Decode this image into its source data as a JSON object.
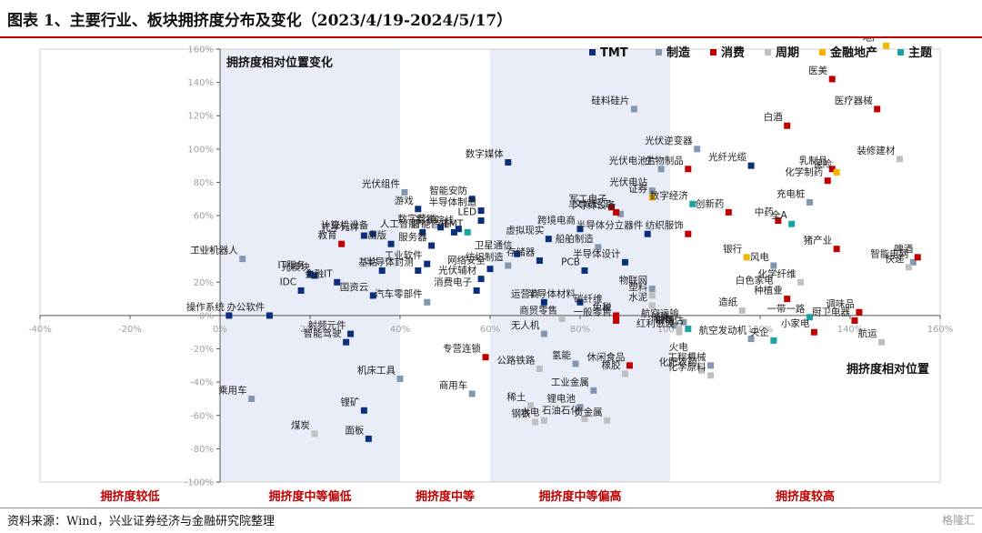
{
  "page": {
    "title": "图表 1、主要行业、板块拥挤度分布及变化（2023/4/19-2024/5/17）",
    "source": "资料来源：Wind，兴业证券经济与金融研究院整理",
    "watermark": "格隆汇"
  },
  "chart_data": {
    "type": "scatter",
    "title": "",
    "xlabel": "拥挤度相对位置",
    "ylabel": "拥挤度相对位置变化",
    "xlim": [
      -40,
      160
    ],
    "ylim": [
      -100,
      160
    ],
    "x_ticks": [
      -40,
      -20,
      0,
      20,
      40,
      60,
      80,
      100,
      120,
      140,
      160
    ],
    "y_ticks": [
      -100,
      -80,
      -60,
      -40,
      -20,
      0,
      20,
      40,
      60,
      80,
      100,
      120,
      140,
      160
    ],
    "x_tick_labels": [
      "-40%",
      "-20%",
      "0%",
      "20%",
      "40%",
      "60%",
      "80%",
      "100%",
      "120%",
      "140%",
      "160%"
    ],
    "y_tick_labels": [
      "-100%",
      "-80%",
      "-60%",
      "-40%",
      "-20%",
      "0%",
      "20%",
      "40%",
      "60%",
      "80%",
      "100%",
      "120%",
      "140%",
      "160%"
    ],
    "zones": [
      {
        "label": "拥挤度较低",
        "from": -40,
        "to": 0,
        "shaded": false
      },
      {
        "label": "拥挤度中等偏低",
        "from": 0,
        "to": 40,
        "shaded": true
      },
      {
        "label": "拥挤度中等",
        "from": 40,
        "to": 60,
        "shaded": false
      },
      {
        "label": "拥挤度中等偏高",
        "from": 60,
        "to": 100,
        "shaded": true
      },
      {
        "label": "拥挤度较高",
        "from": 100,
        "to": 160,
        "shaded": false
      }
    ],
    "legend": {
      "placement": "top-right",
      "entries": [
        {
          "name": "TMT",
          "color": "#0b2f7a"
        },
        {
          "name": "制造",
          "color": "#8497b0"
        },
        {
          "name": "消费",
          "color": "#c00000"
        },
        {
          "name": "周期",
          "color": "#bfbfbf"
        },
        {
          "name": "金融地产",
          "color": "#f4b400"
        },
        {
          "name": "主题",
          "color": "#1aa3a3"
        }
      ]
    },
    "series": [
      {
        "name": "TMT",
        "color": "#0b2f7a",
        "points": [
          {
            "label": "数字媒体",
            "x": 64,
            "y": 92
          },
          {
            "label": "半导体制造",
            "x": 58,
            "y": 63
          },
          {
            "label": "LED",
            "x": 58,
            "y": 57
          },
          {
            "label": "游戏",
            "x": 44,
            "y": 64
          },
          {
            "label": "智能安防",
            "x": 56,
            "y": 70
          },
          {
            "label": "数字营销",
            "x": 49,
            "y": 53
          },
          {
            "label": "影视院线",
            "x": 53,
            "y": 52
          },
          {
            "label": "人工智能",
            "x": 45,
            "y": 50
          },
          {
            "label": "计算机设备",
            "x": 34,
            "y": 49
          },
          {
            "label": "智能音箱",
            "x": 52,
            "y": 50
          },
          {
            "label": "服务器",
            "x": 47,
            "y": 42
          },
          {
            "label": "出版",
            "x": 38,
            "y": 43
          },
          {
            "label": "工业软件",
            "x": 46,
            "y": 31
          },
          {
            "label": "基站",
            "x": 36,
            "y": 27
          },
          {
            "label": "半导体封测",
            "x": 44,
            "y": 27
          },
          {
            "label": "网络安全",
            "x": 60,
            "y": 28
          },
          {
            "label": "光学元件",
            "x": 32,
            "y": 48
          },
          {
            "label": "IT服务",
            "x": 20,
            "y": 25
          },
          {
            "label": "光模块",
            "x": 21,
            "y": 24
          },
          {
            "label": "金融IT",
            "x": 26,
            "y": 20
          },
          {
            "label": "IDC",
            "x": 18,
            "y": 15
          },
          {
            "label": "国资云",
            "x": 34,
            "y": 12
          },
          {
            "label": "操作系统",
            "x": 2,
            "y": 0
          },
          {
            "label": "办公软件",
            "x": 11,
            "y": 0
          },
          {
            "label": "消费电子",
            "x": 57,
            "y": 15
          },
          {
            "label": "光伏辅材",
            "x": 58,
            "y": 22
          },
          {
            "label": "虚拟现实",
            "x": 73,
            "y": 46
          },
          {
            "label": "卫星通信",
            "x": 66,
            "y": 37
          },
          {
            "label": "存储器",
            "x": 71,
            "y": 33
          },
          {
            "label": "PCB",
            "x": 81,
            "y": 27
          },
          {
            "label": "运营商",
            "x": 72,
            "y": 8
          },
          {
            "label": "半导体材料",
            "x": 80,
            "y": 8
          },
          {
            "label": "跨境电商",
            "x": 80,
            "y": 52
          },
          {
            "label": "半导体分立器件",
            "x": 95,
            "y": 49
          },
          {
            "label": "半导体设计",
            "x": 90,
            "y": 32
          },
          {
            "label": "光纤光缆",
            "x": 118,
            "y": 90
          },
          {
            "label": "射频元件",
            "x": 29,
            "y": -11
          },
          {
            "label": "智能驾驶",
            "x": 28,
            "y": -16
          },
          {
            "label": "锂矿",
            "x": 32,
            "y": -57
          },
          {
            "label": "面板",
            "x": 33,
            "y": -74
          }
        ]
      },
      {
        "name": "制造",
        "color": "#8497b0",
        "points": [
          {
            "label": "硅料硅片",
            "x": 92,
            "y": 124
          },
          {
            "label": "光伏逆变器",
            "x": 106,
            "y": 100
          },
          {
            "label": "光伏电池片",
            "x": 98,
            "y": 88
          },
          {
            "label": "光伏电站",
            "x": 96,
            "y": 75
          },
          {
            "label": "半导体设备",
            "x": 89,
            "y": 61
          },
          {
            "label": "光伏组件",
            "x": 41,
            "y": 74
          },
          {
            "label": "工业机器人",
            "x": 5,
            "y": 34
          },
          {
            "label": "汽车零部件",
            "x": 46,
            "y": 8
          },
          {
            "label": "物联网",
            "x": 96,
            "y": 16
          },
          {
            "label": "船舶制造",
            "x": 84,
            "y": 41
          },
          {
            "label": "纺织制造",
            "x": 64,
            "y": 30
          },
          {
            "label": "碳纤维",
            "x": 86,
            "y": 5
          },
          {
            "label": "工业金属",
            "x": 83,
            "y": -45
          },
          {
            "label": "机床工具",
            "x": 40,
            "y": -38
          },
          {
            "label": "商用车",
            "x": 56,
            "y": -47
          },
          {
            "label": "乘用车",
            "x": 7,
            "y": -50
          },
          {
            "label": "无人机",
            "x": 72,
            "y": -11
          },
          {
            "label": "氢能",
            "x": 79,
            "y": -29
          },
          {
            "label": "锂电池",
            "x": 80,
            "y": -55
          },
          {
            "label": "风电",
            "x": 123,
            "y": 30
          },
          {
            "label": "智能电网",
            "x": 154,
            "y": 32
          },
          {
            "label": "充电桩",
            "x": 131,
            "y": 68
          },
          {
            "label": "储能",
            "x": 101,
            "y": -6
          },
          {
            "label": "航空运输",
            "x": 103,
            "y": -4
          },
          {
            "label": "工程机械",
            "x": 109,
            "y": -30
          },
          {
            "label": "航空发动机",
            "x": 118,
            "y": -14
          }
        ]
      },
      {
        "name": "消费",
        "color": "#c00000",
        "points": [
          {
            "label": "医美",
            "x": 136,
            "y": 142
          },
          {
            "label": "医疗器械",
            "x": 146,
            "y": 124
          },
          {
            "label": "白酒",
            "x": 126,
            "y": 114
          },
          {
            "label": "生物制品",
            "x": 104,
            "y": 88
          },
          {
            "label": "乳制品",
            "x": 136,
            "y": 88
          },
          {
            "label": "化学制药",
            "x": 135,
            "y": 81
          },
          {
            "label": "军工电子",
            "x": 87,
            "y": 65
          },
          {
            "label": "文娱轻工",
            "x": 88,
            "y": 62
          },
          {
            "label": "创新药",
            "x": 113,
            "y": 62
          },
          {
            "label": "中药",
            "x": 124,
            "y": 57
          },
          {
            "label": "纺织服饰",
            "x": 104,
            "y": 49
          },
          {
            "label": "猪产业",
            "x": 137,
            "y": 40
          },
          {
            "label": "啤酒",
            "x": 155,
            "y": 35
          },
          {
            "label": "教育",
            "x": 27,
            "y": 43
          },
          {
            "label": "种植业",
            "x": 126,
            "y": 10
          },
          {
            "label": "调味品",
            "x": 142,
            "y": 2
          },
          {
            "label": "厨卫电器",
            "x": 141,
            "y": -3
          },
          {
            "label": "小家电",
            "x": 132,
            "y": -10
          },
          {
            "label": "专营连锁",
            "x": 59,
            "y": -25
          },
          {
            "label": "免税",
            "x": 88,
            "y": 0
          },
          {
            "label": "一般零售",
            "x": 88,
            "y": -3
          },
          {
            "label": "休闲食品",
            "x": 91,
            "y": -30
          }
        ]
      },
      {
        "name": "周期",
        "color": "#bfbfbf",
        "points": [
          {
            "label": "装修建材",
            "x": 151,
            "y": 94
          },
          {
            "label": "化学纤维",
            "x": 129,
            "y": 20
          },
          {
            "label": "快递",
            "x": 153,
            "y": 29
          },
          {
            "label": "白色家电",
            "x": 124,
            "y": 16
          },
          {
            "label": "造纸",
            "x": 116,
            "y": 3
          },
          {
            "label": "塑料",
            "x": 96,
            "y": 12
          },
          {
            "label": "水泥",
            "x": 96,
            "y": 6
          },
          {
            "label": "玻璃",
            "x": 102,
            "y": -8
          },
          {
            "label": "红利低波",
            "x": 102,
            "y": -10
          },
          {
            "label": "火电",
            "x": 105,
            "y": -24
          },
          {
            "label": "化肥农药",
            "x": 107,
            "y": -33
          },
          {
            "label": "化学原料",
            "x": 109,
            "y": -36
          },
          {
            "label": "公路铁路",
            "x": 71,
            "y": -32
          },
          {
            "label": "稀土",
            "x": 69,
            "y": -54
          },
          {
            "label": "钢铁",
            "x": 70,
            "y": -64
          },
          {
            "label": "水电",
            "x": 72,
            "y": -63
          },
          {
            "label": "石油石化",
            "x": 81,
            "y": -62
          },
          {
            "label": "贵金属",
            "x": 86,
            "y": -63
          },
          {
            "label": "橡胶",
            "x": 90,
            "y": -35
          },
          {
            "label": "航运",
            "x": 147,
            "y": -16
          },
          {
            "label": "煤炭",
            "x": 21,
            "y": -71
          },
          {
            "label": "商贸零售",
            "x": 76,
            "y": -2
          }
        ]
      },
      {
        "name": "金融地产",
        "color": "#f4b400",
        "points": [
          {
            "label": "地产",
            "x": 148,
            "y": 162
          },
          {
            "label": "保险",
            "x": 137,
            "y": 86
          },
          {
            "label": "证券",
            "x": 96,
            "y": 71
          },
          {
            "label": "银行",
            "x": 117,
            "y": 35
          }
        ]
      },
      {
        "name": "主题",
        "color": "#1aa3a3",
        "points": [
          {
            "label": "全A",
            "x": 127,
            "y": 55
          },
          {
            "label": "数字经济",
            "x": 105,
            "y": 67
          },
          {
            "label": "TMT",
            "x": 55,
            "y": 50
          },
          {
            "label": "央企",
            "x": 123,
            "y": -15
          },
          {
            "label": "一带一路",
            "x": 131,
            "y": -1
          },
          {
            "label": "中特估",
            "x": 104,
            "y": -8
          }
        ]
      }
    ]
  }
}
